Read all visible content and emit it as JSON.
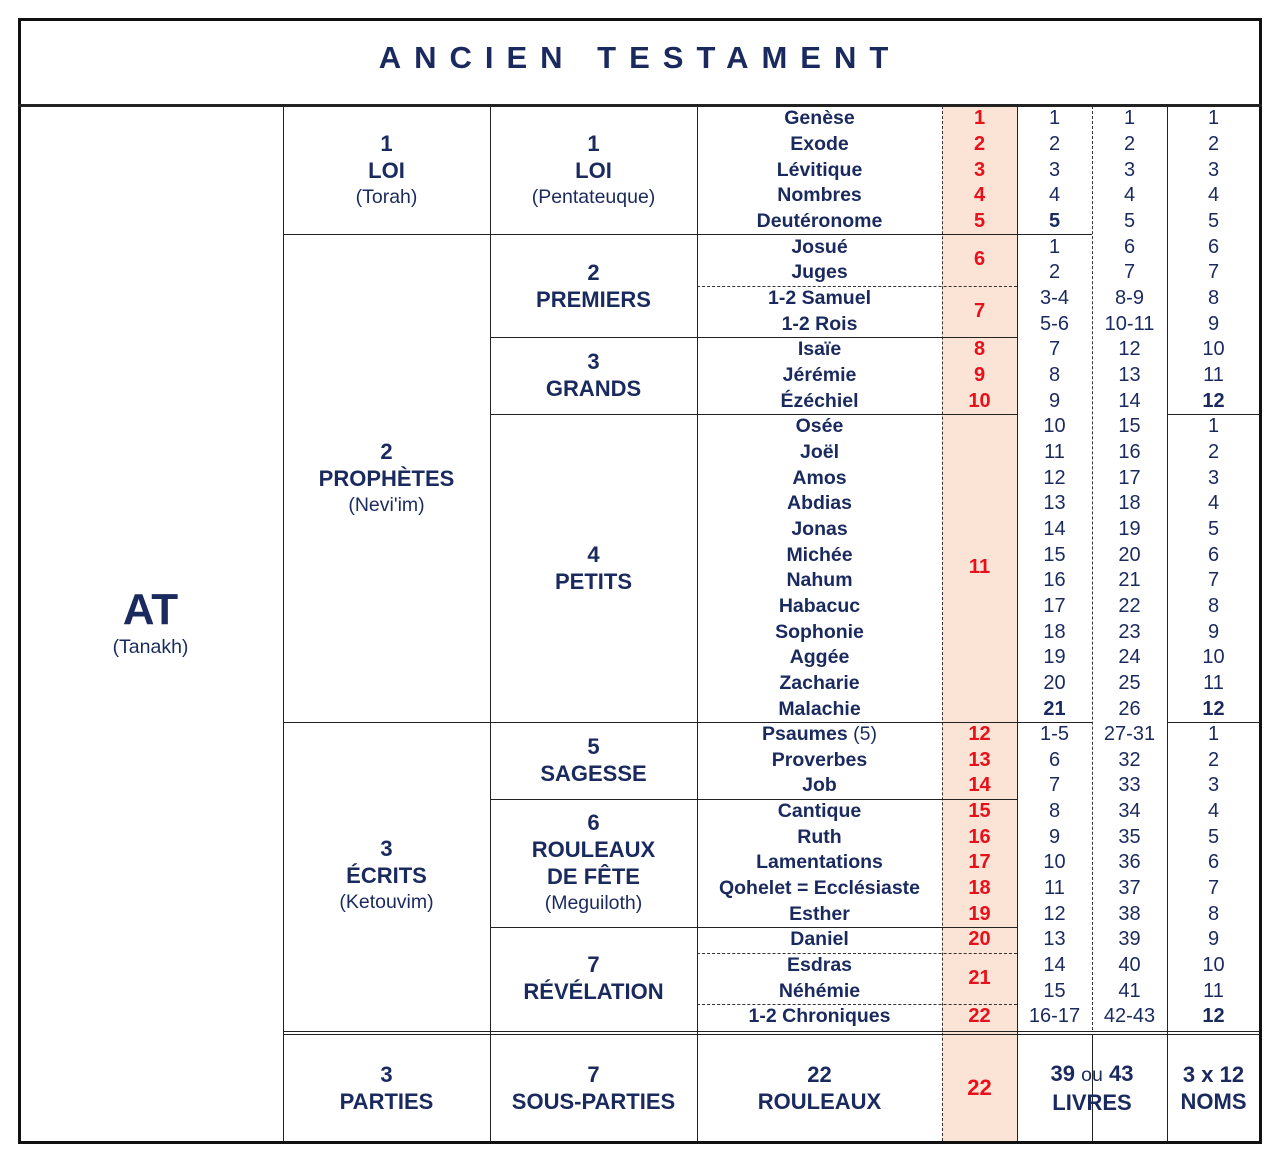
{
  "title": "ANCIEN   TESTAMENT",
  "colors": {
    "text": "#1a2a5e",
    "scroll_number": "#e8101a",
    "scroll_column_bg": "#fbe3d6"
  },
  "root": {
    "name": "AT",
    "sub": "(Tanakh)"
  },
  "parts": [
    {
      "num": "1",
      "name": "LOI",
      "sub": "(Torah)",
      "subparts": [
        {
          "num": "1",
          "name_lines": [
            "LOI"
          ],
          "sub": "(Pentateuque)",
          "scroll_dividers": false,
          "scrolls": [
            {
              "num": "1",
              "books": [
                {
                  "name": "Genèse",
                  "c6": "1",
                  "c7": "1",
                  "c8": "1"
                }
              ]
            },
            {
              "num": "2",
              "books": [
                {
                  "name": "Exode",
                  "c6": "2",
                  "c7": "2",
                  "c8": "2"
                }
              ]
            },
            {
              "num": "3",
              "books": [
                {
                  "name": "Lévitique",
                  "c6": "3",
                  "c7": "3",
                  "c8": "3"
                }
              ]
            },
            {
              "num": "4",
              "books": [
                {
                  "name": "Nombres",
                  "c6": "4",
                  "c7": "4",
                  "c8": "4"
                }
              ]
            },
            {
              "num": "5",
              "books": [
                {
                  "name": "Deutéronome",
                  "c6": "5",
                  "c6_emph": true,
                  "c7": "5",
                  "c8": "5"
                }
              ]
            }
          ]
        }
      ]
    },
    {
      "num": "2",
      "name": "PROPHÈTES",
      "sub": "(Nevi'im)",
      "subparts": [
        {
          "num": "2",
          "name_lines": [
            "PREMIERS"
          ],
          "sub": "",
          "scroll_dividers": true,
          "scrolls": [
            {
              "num": "6",
              "books": [
                {
                  "name": "Josué",
                  "c6": "1",
                  "c7": "6",
                  "c8": "6"
                },
                {
                  "name": "Juges",
                  "c6": "2",
                  "c7": "7",
                  "c8": "7"
                }
              ]
            },
            {
              "num": "7",
              "books": [
                {
                  "name": "1-2 Samuel",
                  "c6": "3-4",
                  "c7": "8-9",
                  "c8": "8"
                },
                {
                  "name": "1-2 Rois",
                  "c6": "5-6",
                  "c7": "10-11",
                  "c8": "9"
                }
              ]
            }
          ]
        },
        {
          "num": "3",
          "name_lines": [
            "GRANDS"
          ],
          "sub": "",
          "scroll_dividers": false,
          "scrolls": [
            {
              "num": "8",
              "books": [
                {
                  "name": "Isaïe",
                  "c6": "7",
                  "c7": "12",
                  "c8": "10"
                }
              ]
            },
            {
              "num": "9",
              "books": [
                {
                  "name": "Jérémie",
                  "c6": "8",
                  "c7": "13",
                  "c8": "11"
                }
              ]
            },
            {
              "num": "10",
              "books": [
                {
                  "name": "Ézéchiel",
                  "c6": "9",
                  "c7": "14",
                  "c8": "12",
                  "c8_emph": true
                }
              ]
            }
          ]
        },
        {
          "num": "4",
          "name_lines": [
            "PETITS"
          ],
          "sub": "",
          "scroll_dividers": false,
          "scrolls": [
            {
              "num": "11",
              "books": [
                {
                  "name": "Osée",
                  "c6": "10",
                  "c7": "15",
                  "c8": "1"
                },
                {
                  "name": "Joël",
                  "c6": "11",
                  "c7": "16",
                  "c8": "2"
                },
                {
                  "name": "Amos",
                  "c6": "12",
                  "c7": "17",
                  "c8": "3"
                },
                {
                  "name": "Abdias",
                  "c6": "13",
                  "c7": "18",
                  "c8": "4"
                },
                {
                  "name": "Jonas",
                  "c6": "14",
                  "c7": "19",
                  "c8": "5"
                },
                {
                  "name": "Michée",
                  "c6": "15",
                  "c7": "20",
                  "c8": "6"
                },
                {
                  "name": "Nahum",
                  "c6": "16",
                  "c7": "21",
                  "c8": "7"
                },
                {
                  "name": "Habacuc",
                  "c6": "17",
                  "c7": "22",
                  "c8": "8"
                },
                {
                  "name": "Sophonie",
                  "c6": "18",
                  "c7": "23",
                  "c8": "9"
                },
                {
                  "name": "Aggée",
                  "c6": "19",
                  "c7": "24",
                  "c8": "10"
                },
                {
                  "name": "Zacharie",
                  "c6": "20",
                  "c7": "25",
                  "c8": "11"
                },
                {
                  "name": "Malachie",
                  "c6": "21",
                  "c6_emph": true,
                  "c7": "26",
                  "c8": "12",
                  "c8_emph": true
                }
              ]
            }
          ]
        }
      ]
    },
    {
      "num": "3",
      "name": "ÉCRITS",
      "sub": "(Ketouvim)",
      "subparts": [
        {
          "num": "5",
          "name_lines": [
            "SAGESSE"
          ],
          "sub": "",
          "scroll_dividers": false,
          "scrolls": [
            {
              "num": "12",
              "books": [
                {
                  "name": "Psaumes",
                  "note": "(5)",
                  "c6": "1-5",
                  "c7": "27-31",
                  "c8": "1"
                }
              ]
            },
            {
              "num": "13",
              "books": [
                {
                  "name": "Proverbes",
                  "c6": "6",
                  "c7": "32",
                  "c8": "2"
                }
              ]
            },
            {
              "num": "14",
              "books": [
                {
                  "name": "Job",
                  "c6": "7",
                  "c7": "33",
                  "c8": "3"
                }
              ]
            }
          ]
        },
        {
          "num": "6",
          "name_lines": [
            "ROULEAUX",
            "DE FÊTE"
          ],
          "sub": "(Meguiloth)",
          "scroll_dividers": false,
          "scrolls": [
            {
              "num": "15",
              "books": [
                {
                  "name": "Cantique",
                  "c6": "8",
                  "c7": "34",
                  "c8": "4"
                }
              ]
            },
            {
              "num": "16",
              "books": [
                {
                  "name": "Ruth",
                  "c6": "9",
                  "c7": "35",
                  "c8": "5"
                }
              ]
            },
            {
              "num": "17",
              "books": [
                {
                  "name": "Lamentations",
                  "c6": "10",
                  "c7": "36",
                  "c8": "6"
                }
              ]
            },
            {
              "num": "18",
              "books": [
                {
                  "name": "Qohelet = Ecclésiaste",
                  "c6": "11",
                  "c7": "37",
                  "c8": "7"
                }
              ]
            },
            {
              "num": "19",
              "books": [
                {
                  "name": "Esther",
                  "c6": "12",
                  "c7": "38",
                  "c8": "8"
                }
              ]
            }
          ]
        },
        {
          "num": "7",
          "name_lines": [
            "RÉVÉLATION"
          ],
          "sub": "",
          "scroll_dividers": true,
          "scrolls": [
            {
              "num": "20",
              "books": [
                {
                  "name": "Daniel",
                  "c6": "13",
                  "c7": "39",
                  "c8": "9"
                }
              ]
            },
            {
              "num": "21",
              "books": [
                {
                  "name": "Esdras",
                  "c6": "14",
                  "c7": "40",
                  "c8": "10"
                },
                {
                  "name": "Néhémie",
                  "c6": "15",
                  "c7": "41",
                  "c8": "11"
                }
              ]
            },
            {
              "num": "22",
              "books": [
                {
                  "name": "1-2 Chroniques",
                  "c6": "16-17",
                  "c7": "42-43",
                  "c8": "12",
                  "c8_emph": true
                }
              ]
            }
          ]
        }
      ]
    }
  ],
  "footer": {
    "parts": {
      "num": "3",
      "label": "PARTIES"
    },
    "subparts": {
      "num": "7",
      "label": "SOUS-PARTIES"
    },
    "scrolls": {
      "num": "22",
      "label": "ROULEAUX"
    },
    "scroll_total": "22",
    "books": {
      "a": "39",
      "or": "ou",
      "b": "43",
      "label": "LIVRES"
    },
    "names": {
      "num": "3 x 12",
      "label": "NOMS"
    }
  }
}
